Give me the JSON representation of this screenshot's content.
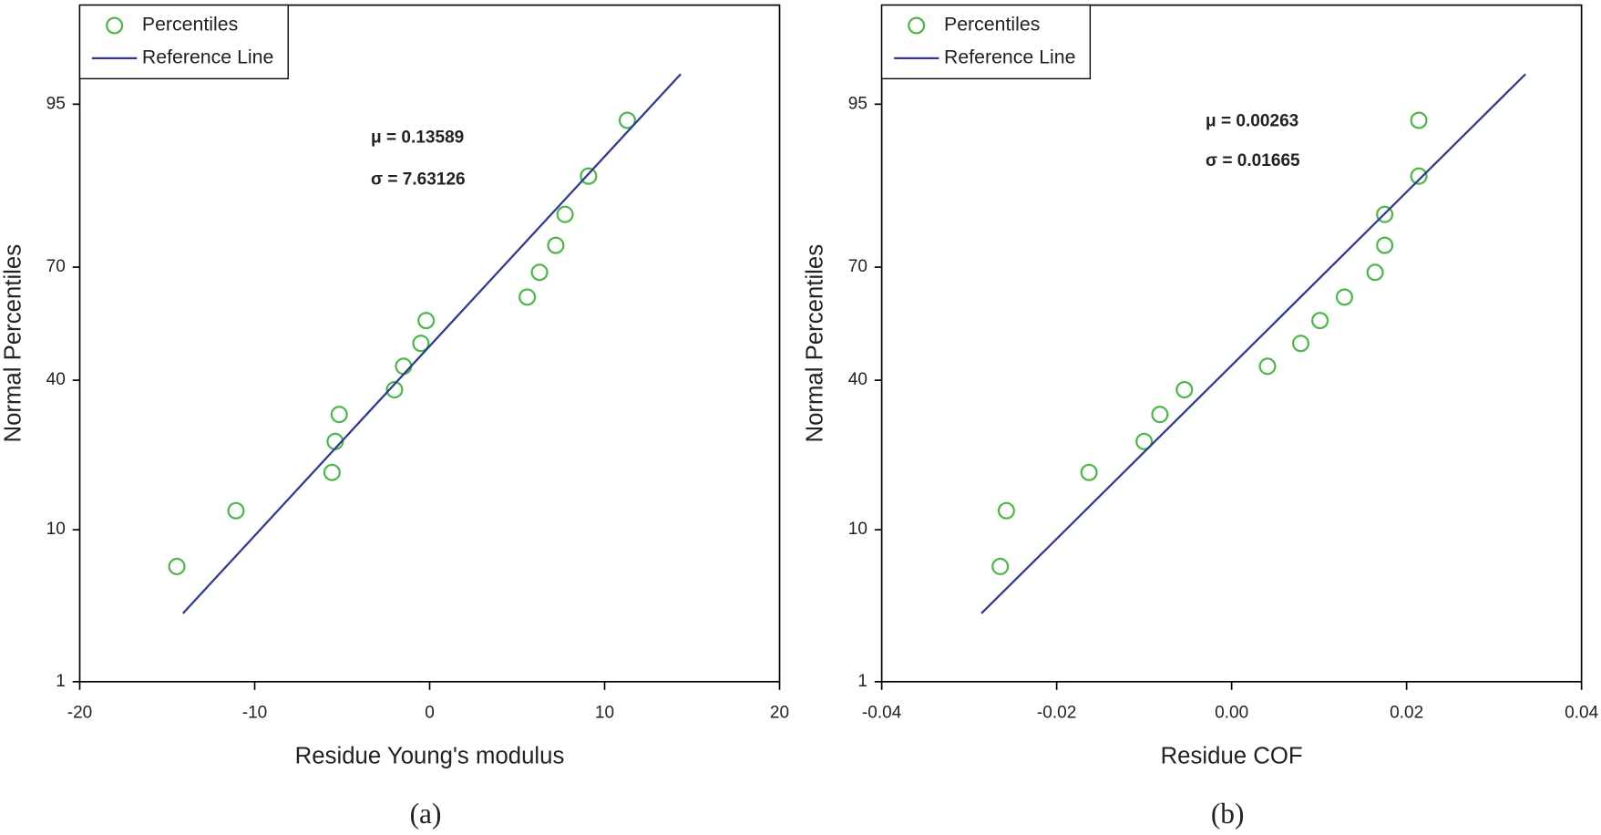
{
  "chart_data": [
    {
      "type": "scatter",
      "yscale": "probit",
      "xlabel": "Residue Young's modulus",
      "ylabel": "Normal Percentiles",
      "xlim": [
        -20,
        20
      ],
      "xticks": [
        -20,
        -10,
        0,
        10,
        20
      ],
      "ylim": [
        1,
        99
      ],
      "yticks": [
        1,
        10,
        40,
        70,
        95
      ],
      "legend": "top-left",
      "annotations": [
        "μ = 0.13589",
        "σ = 7.63126"
      ],
      "caption": "(a)",
      "series": [
        {
          "name": "Percentiles",
          "type": "scatter",
          "color": "#4db848",
          "x": [
            -14.45,
            -11.07,
            -5.58,
            -5.4,
            -5.17,
            -2.01,
            -1.49,
            -0.5,
            -0.2,
            5.58,
            6.28,
            7.21,
            7.74,
            9.08,
            11.3
          ],
          "values": [
            6.25,
            12.5,
            18.75,
            25,
            31.25,
            37.5,
            43.75,
            50,
            56.25,
            62.5,
            68.75,
            75,
            81.25,
            87.5,
            93.75
          ]
        },
        {
          "name": "Reference Line",
          "type": "line",
          "color": "#2b3990",
          "x": [
            -14.1,
            14.35
          ],
          "values": [
            3.17,
            96.8
          ]
        }
      ]
    },
    {
      "type": "scatter",
      "yscale": "probit",
      "xlabel": "Residue COF",
      "ylabel": "Normal Percentiles",
      "xlim": [
        -0.04,
        0.04
      ],
      "xticks": [
        -0.04,
        -0.02,
        {
          "value": 0,
          "label": "0.00"
        },
        0.02,
        0.04
      ],
      "ylim": [
        1,
        99
      ],
      "yticks": [
        1,
        10,
        40,
        70,
        95
      ],
      "legend": "top-left",
      "annotations": [
        "μ = 0.00263",
        "σ = 0.01665"
      ],
      "caption": "(b)",
      "series": [
        {
          "name": "Percentiles",
          "type": "scatter",
          "color": "#4db848",
          "x": [
            -0.02645,
            -0.02575,
            -0.0163,
            -0.01,
            -0.0082,
            -0.0054,
            0.0041,
            0.0079,
            0.0101,
            0.0129,
            0.0164,
            0.0175,
            0.0175,
            0.0214,
            0.0214
          ],
          "values": [
            6.25,
            12.5,
            18.75,
            25,
            31.25,
            37.5,
            43.75,
            50,
            56.25,
            62.5,
            68.75,
            75,
            81.25,
            87.5,
            93.75
          ]
        },
        {
          "name": "Reference Line",
          "type": "line",
          "color": "#2b3990",
          "x": [
            -0.0286,
            0.0336
          ],
          "values": [
            3.17,
            96.8
          ]
        }
      ]
    }
  ]
}
